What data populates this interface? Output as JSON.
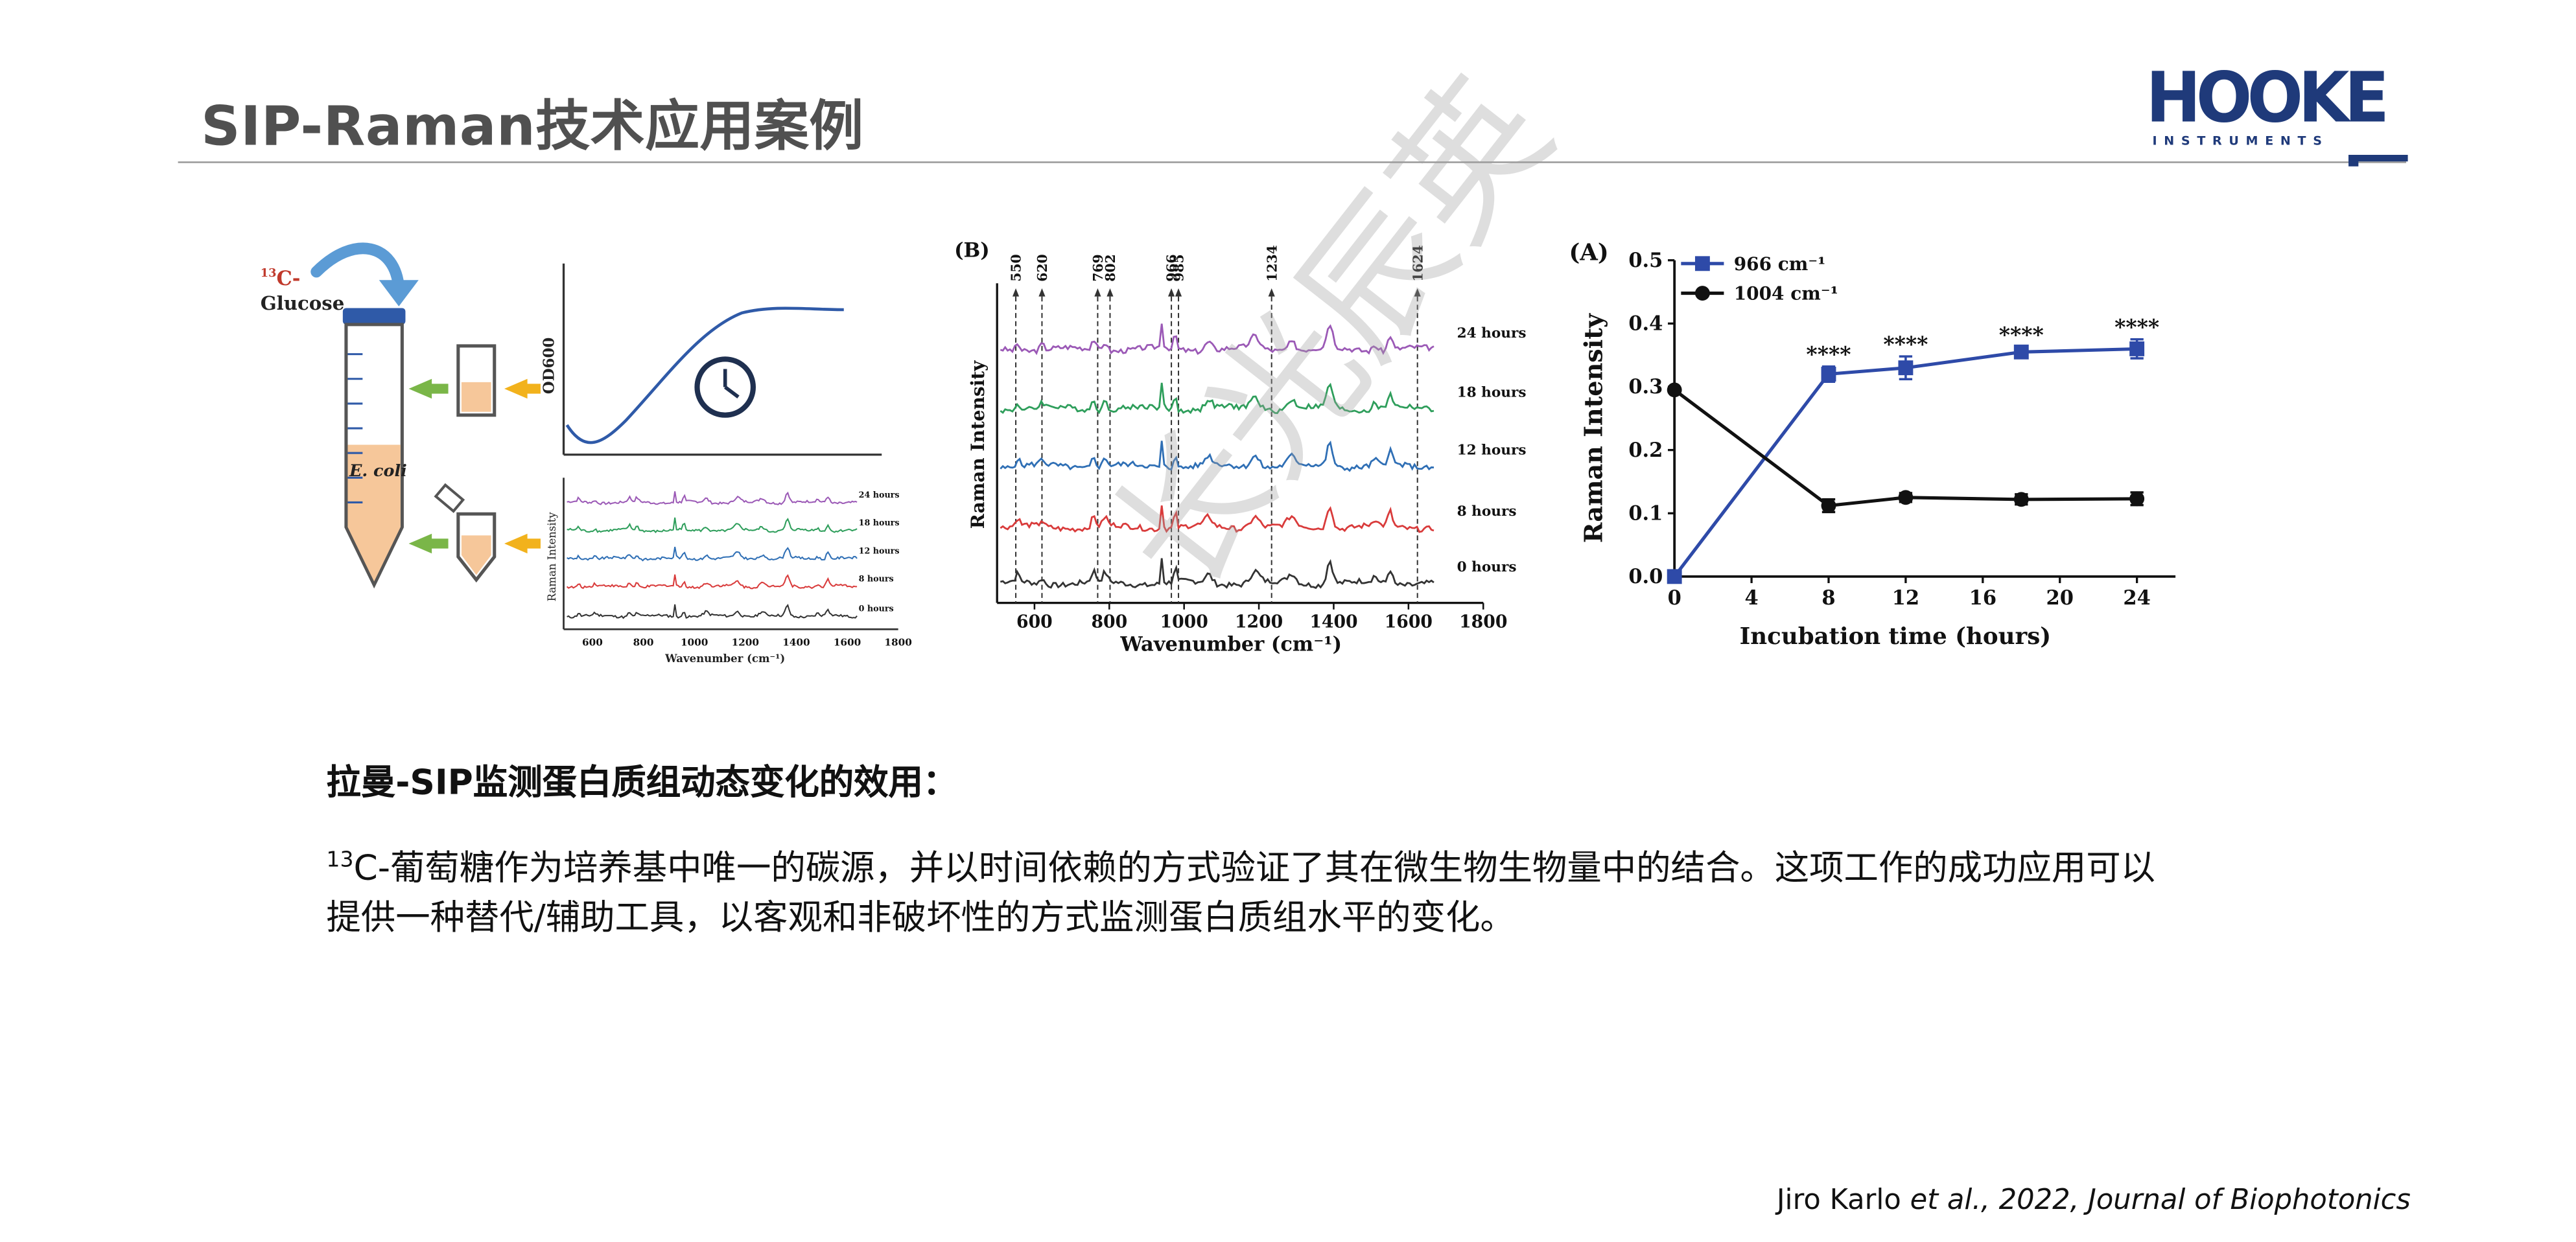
{
  "slide": {
    "title": "SIP-Raman技术应用案例",
    "logo": {
      "main": "HOOKE",
      "sub": "INSTRUMENTS",
      "color": "#1f3a7a"
    },
    "heading": "拉曼-SIP监测蛋白质组动态变化的效用：",
    "paragraph": {
      "sup": "13",
      "text": "C-葡萄糖作为培养基中唯一的碳源，并以时间依赖的方式验证了其在微生物生物量中的结合。这项工作的成功应用可以提供一种替代/辅助工具，以客观和非破坏性的方式监测蛋白质组水平的变化。"
    },
    "citation": {
      "author": "Jiro Karlo ",
      "etal": "et al., 2022,  Journal of  Biophotonics"
    },
    "watermark": "长光辰英"
  },
  "figure_left": {
    "isotope_sup": "13",
    "isotope_label": "C-",
    "glucose_label": "Glucose",
    "tube_label": "E. coli",
    "growth_ylabel": "OD600",
    "spectra_ylabel": "Raman Intensity",
    "spectra_xlabel": "Wavenumber (cm⁻¹)",
    "x_ticks": [
      "600",
      "800",
      "1000",
      "1200",
      "1400",
      "1600",
      "1800"
    ],
    "traces": [
      {
        "label": "24 hours",
        "color": "#9b59b6"
      },
      {
        "label": "18 hours",
        "color": "#2e9e5b"
      },
      {
        "label": "12 hours",
        "color": "#2f6fb5"
      },
      {
        "label": "8 hours",
        "color": "#d93b3b"
      },
      {
        "label": "0 hours",
        "color": "#333333"
      }
    ]
  },
  "figure_b": {
    "panel": "(B)",
    "ylabel": "Raman Intensity",
    "xlabel": "Wavenumber (cm⁻¹)",
    "x_ticks": [
      "600",
      "800",
      "1000",
      "1200",
      "1400",
      "1600",
      "1800"
    ],
    "peaks": [
      "550",
      "620",
      "769",
      "802",
      "966",
      "985",
      "1234",
      "1624"
    ],
    "traces": [
      {
        "label": "24 hours",
        "color": "#9b59b6"
      },
      {
        "label": "18 hours",
        "color": "#2e9e5b"
      },
      {
        "label": "12 hours",
        "color": "#2f6fb5"
      },
      {
        "label": "8 hours",
        "color": "#d93b3b"
      },
      {
        "label": "0 hours",
        "color": "#333333"
      }
    ]
  },
  "chart_data": {
    "type": "line",
    "panel": "(A)",
    "xlabel": "Incubation time (hours)",
    "ylabel": "Raman Intensity",
    "xlim": [
      0,
      26
    ],
    "ylim": [
      0,
      0.5
    ],
    "x_ticks": [
      "0",
      "4",
      "8",
      "12",
      "16",
      "20",
      "24"
    ],
    "y_ticks": [
      "0.0",
      "0.1",
      "0.2",
      "0.3",
      "0.4",
      "0.5"
    ],
    "legend_position": "top-left",
    "series": [
      {
        "name": "966 cm⁻¹",
        "color": "#2e4aa8",
        "marker": "square",
        "x": [
          0,
          8,
          12,
          18,
          24
        ],
        "y": [
          0.0,
          0.32,
          0.33,
          0.355,
          0.36
        ],
        "err": [
          0.0,
          0.012,
          0.018,
          0.008,
          0.015
        ],
        "sig": [
          "",
          "****",
          "****",
          "****",
          "****"
        ]
      },
      {
        "name": "1004 cm⁻¹",
        "color": "#111111",
        "marker": "circle",
        "x": [
          0,
          8,
          12,
          18,
          24
        ],
        "y": [
          0.295,
          0.112,
          0.125,
          0.122,
          0.123
        ],
        "err": [
          0.0,
          0.01,
          0.007,
          0.008,
          0.01
        ]
      }
    ]
  }
}
